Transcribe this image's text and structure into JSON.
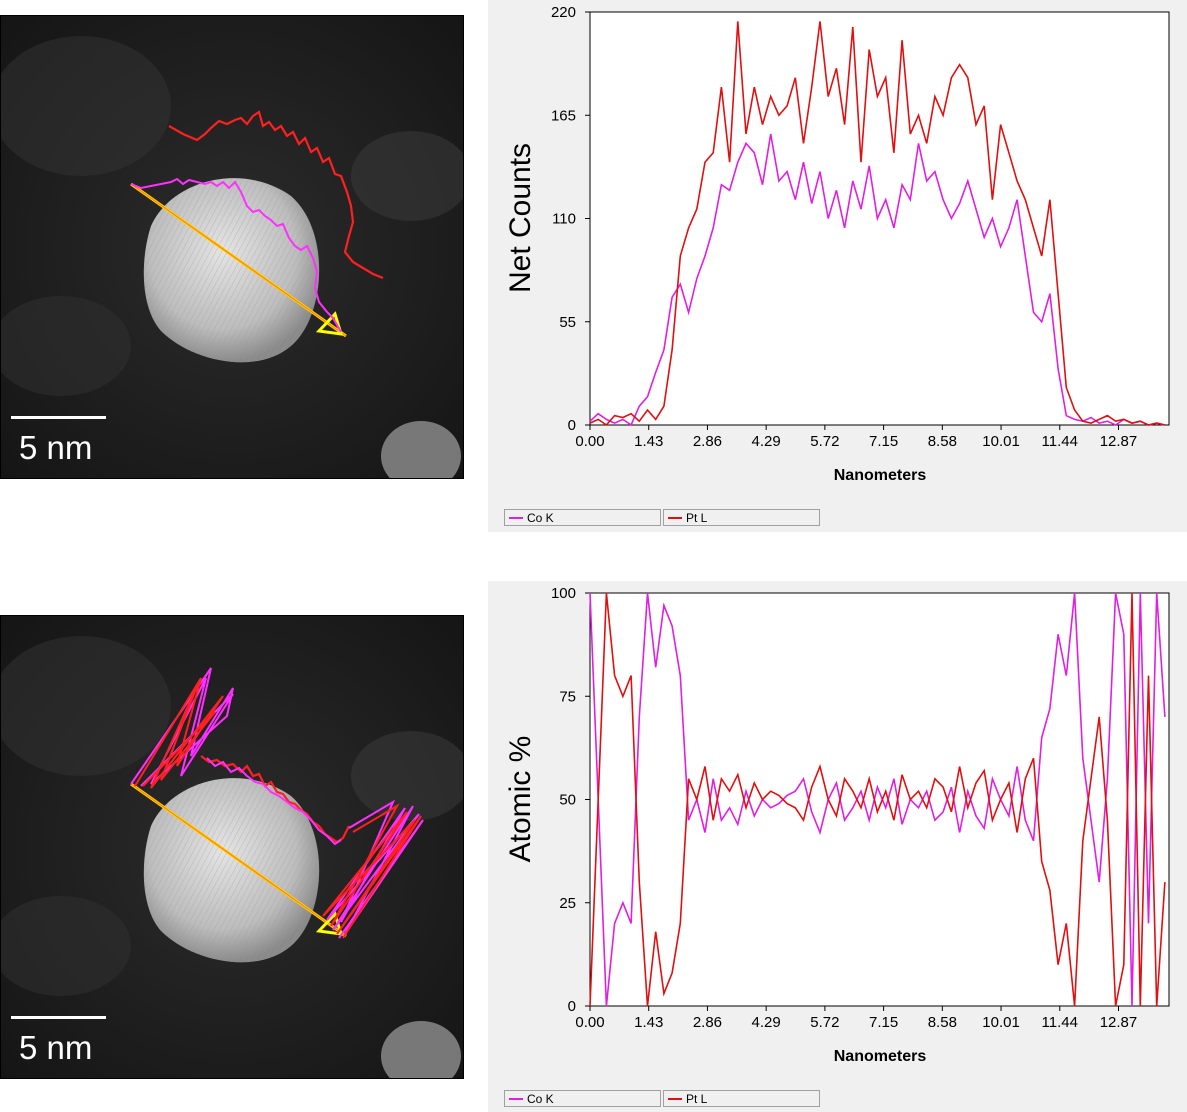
{
  "images": [
    {
      "scalebar_label": "5 nm"
    },
    {
      "scalebar_label": "5 nm"
    }
  ],
  "chart_data": [
    {
      "type": "line",
      "xlabel": "Nanometers",
      "ylabel": "Net Counts",
      "xticks": [
        "0.00",
        "1.43",
        "2.86",
        "4.29",
        "5.72",
        "7.15",
        "8.58",
        "10.01",
        "11.44",
        "12.87"
      ],
      "yticks": [
        "0",
        "55",
        "110",
        "165",
        "220"
      ],
      "xlim": [
        0,
        14.1
      ],
      "ylim": [
        0,
        220
      ],
      "legend": "bottom",
      "series": [
        {
          "name": "Co K",
          "color": "#e020e0",
          "x": [
            0.0,
            0.2,
            0.4,
            0.6,
            0.8,
            1.0,
            1.2,
            1.4,
            1.6,
            1.8,
            2.0,
            2.2,
            2.4,
            2.6,
            2.8,
            3.0,
            3.2,
            3.4,
            3.6,
            3.8,
            4.0,
            4.2,
            4.4,
            4.6,
            4.8,
            5.0,
            5.2,
            5.4,
            5.6,
            5.8,
            6.0,
            6.2,
            6.4,
            6.6,
            6.8,
            7.0,
            7.2,
            7.4,
            7.6,
            7.8,
            8.0,
            8.2,
            8.4,
            8.6,
            8.8,
            9.0,
            9.2,
            9.4,
            9.6,
            9.8,
            10.0,
            10.2,
            10.4,
            10.6,
            10.8,
            11.0,
            11.2,
            11.4,
            11.6,
            11.8,
            12.0,
            12.2,
            12.4,
            12.6,
            12.8,
            13.0,
            13.2,
            13.4,
            13.6,
            13.8,
            14.0
          ],
          "values": [
            2,
            6,
            3,
            1,
            3,
            0,
            10,
            15,
            28,
            40,
            68,
            75,
            60,
            78,
            90,
            105,
            128,
            125,
            140,
            150,
            145,
            128,
            155,
            130,
            135,
            120,
            140,
            118,
            135,
            110,
            125,
            105,
            130,
            115,
            138,
            110,
            120,
            105,
            128,
            120,
            150,
            130,
            135,
            120,
            110,
            118,
            130,
            115,
            100,
            110,
            95,
            105,
            120,
            90,
            60,
            55,
            70,
            30,
            5,
            3,
            2,
            4,
            1,
            2,
            0,
            3,
            1,
            2,
            0,
            1,
            0
          ]
        },
        {
          "name": "Pt L",
          "color": "#e01010",
          "x": [
            0.0,
            0.2,
            0.4,
            0.6,
            0.8,
            1.0,
            1.2,
            1.4,
            1.6,
            1.8,
            2.0,
            2.2,
            2.4,
            2.6,
            2.8,
            3.0,
            3.2,
            3.4,
            3.6,
            3.8,
            4.0,
            4.2,
            4.4,
            4.6,
            4.8,
            5.0,
            5.2,
            5.4,
            5.6,
            5.8,
            6.0,
            6.2,
            6.4,
            6.6,
            6.8,
            7.0,
            7.2,
            7.4,
            7.6,
            7.8,
            8.0,
            8.2,
            8.4,
            8.6,
            8.8,
            9.0,
            9.2,
            9.4,
            9.6,
            9.8,
            10.0,
            10.2,
            10.4,
            10.6,
            10.8,
            11.0,
            11.2,
            11.4,
            11.6,
            11.8,
            12.0,
            12.2,
            12.4,
            12.6,
            12.8,
            13.0,
            13.2,
            13.4,
            13.6,
            13.8,
            14.0
          ],
          "values": [
            1,
            3,
            0,
            5,
            4,
            6,
            2,
            8,
            3,
            10,
            40,
            90,
            105,
            115,
            140,
            145,
            180,
            140,
            215,
            155,
            180,
            160,
            175,
            165,
            170,
            185,
            150,
            180,
            215,
            175,
            190,
            160,
            212,
            140,
            200,
            175,
            185,
            145,
            205,
            155,
            165,
            150,
            175,
            165,
            185,
            192,
            185,
            160,
            170,
            120,
            160,
            145,
            130,
            120,
            105,
            90,
            120,
            70,
            20,
            8,
            2,
            1,
            3,
            5,
            2,
            3,
            1,
            2,
            0,
            1,
            0
          ]
        }
      ]
    },
    {
      "type": "line",
      "xlabel": "Nanometers",
      "ylabel": "Atomic %",
      "xticks": [
        "0.00",
        "1.43",
        "2.86",
        "4.29",
        "5.72",
        "7.15",
        "8.58",
        "10.01",
        "11.44",
        "12.87"
      ],
      "yticks": [
        "0",
        "25",
        "50",
        "75",
        "100"
      ],
      "xlim": [
        0,
        14.1
      ],
      "ylim": [
        0,
        100
      ],
      "legend": "bottom",
      "series": [
        {
          "name": "Co K",
          "color": "#e020e0",
          "x": [
            0.0,
            0.2,
            0.4,
            0.6,
            0.8,
            1.0,
            1.2,
            1.4,
            1.6,
            1.8,
            2.0,
            2.2,
            2.4,
            2.6,
            2.8,
            3.0,
            3.2,
            3.4,
            3.6,
            3.8,
            4.0,
            4.2,
            4.4,
            4.6,
            4.8,
            5.0,
            5.2,
            5.4,
            5.6,
            5.8,
            6.0,
            6.2,
            6.4,
            6.6,
            6.8,
            7.0,
            7.2,
            7.4,
            7.6,
            7.8,
            8.0,
            8.2,
            8.4,
            8.6,
            8.8,
            9.0,
            9.2,
            9.4,
            9.6,
            9.8,
            10.0,
            10.2,
            10.4,
            10.6,
            10.8,
            11.0,
            11.2,
            11.4,
            11.6,
            11.8,
            12.0,
            12.2,
            12.4,
            12.6,
            12.8,
            13.0,
            13.2,
            13.4,
            13.6,
            13.8,
            14.0
          ],
          "values": [
            100,
            50,
            0,
            20,
            25,
            20,
            70,
            100,
            82,
            97,
            92,
            80,
            45,
            50,
            42,
            55,
            45,
            48,
            44,
            52,
            46,
            50,
            48,
            49,
            51,
            52,
            55,
            47,
            42,
            50,
            54,
            45,
            48,
            52,
            45,
            53,
            48,
            55,
            44,
            50,
            48,
            52,
            45,
            47,
            53,
            42,
            52,
            46,
            43,
            55,
            50,
            46,
            58,
            45,
            40,
            65,
            72,
            90,
            80,
            100,
            60,
            45,
            30,
            55,
            100,
            90,
            0,
            100,
            20,
            100,
            70
          ]
        },
        {
          "name": "Pt L",
          "color": "#e01010",
          "x": [
            0.0,
            0.2,
            0.4,
            0.6,
            0.8,
            1.0,
            1.2,
            1.4,
            1.6,
            1.8,
            2.0,
            2.2,
            2.4,
            2.6,
            2.8,
            3.0,
            3.2,
            3.4,
            3.6,
            3.8,
            4.0,
            4.2,
            4.4,
            4.6,
            4.8,
            5.0,
            5.2,
            5.4,
            5.6,
            5.8,
            6.0,
            6.2,
            6.4,
            6.6,
            6.8,
            7.0,
            7.2,
            7.4,
            7.6,
            7.8,
            8.0,
            8.2,
            8.4,
            8.6,
            8.8,
            9.0,
            9.2,
            9.4,
            9.6,
            9.8,
            10.0,
            10.2,
            10.4,
            10.6,
            10.8,
            11.0,
            11.2,
            11.4,
            11.6,
            11.8,
            12.0,
            12.2,
            12.4,
            12.6,
            12.8,
            13.0,
            13.2,
            13.4,
            13.6,
            13.8,
            14.0
          ],
          "values": [
            0,
            50,
            100,
            80,
            75,
            80,
            30,
            0,
            18,
            3,
            8,
            20,
            55,
            50,
            58,
            45,
            55,
            52,
            56,
            48,
            54,
            50,
            52,
            51,
            49,
            48,
            45,
            53,
            58,
            50,
            46,
            55,
            52,
            48,
            55,
            47,
            52,
            45,
            56,
            50,
            52,
            48,
            55,
            53,
            47,
            58,
            48,
            54,
            57,
            45,
            50,
            54,
            42,
            55,
            60,
            35,
            28,
            10,
            20,
            0,
            40,
            55,
            70,
            45,
            0,
            10,
            100,
            0,
            80,
            0,
            30
          ]
        }
      ]
    }
  ]
}
